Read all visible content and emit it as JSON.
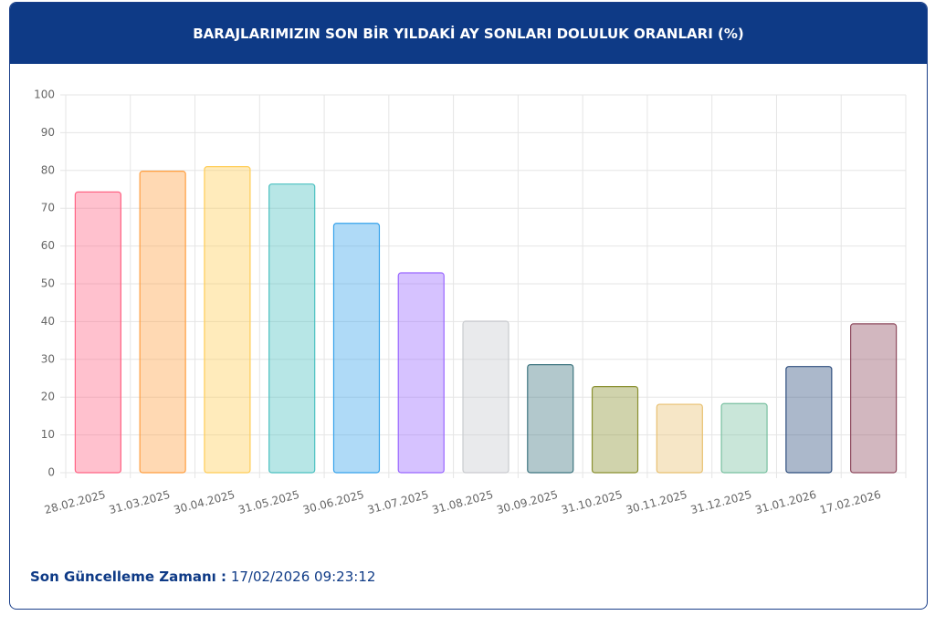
{
  "chart_data": {
    "type": "bar",
    "title": "BARAJLARIMIZIN SON BİR YILDAKİ AY SONLARI DOLULUK ORANLARI (%)",
    "categories": [
      "28.02.2025",
      "31.03.2025",
      "30.04.2025",
      "31.05.2025",
      "30.06.2025",
      "31.07.2025",
      "31.08.2025",
      "30.09.2025",
      "31.10.2025",
      "30.11.2025",
      "31.12.2025",
      "31.01.2026",
      "17.02.2026"
    ],
    "values": [
      74.3,
      79.8,
      81.0,
      76.4,
      66.0,
      52.9,
      40.1,
      28.6,
      22.8,
      18.1,
      18.3,
      28.1,
      39.4
    ],
    "colors": [
      "#ff6384",
      "#ff9f40",
      "#ffcd56",
      "#4bc0c0",
      "#36a2eb",
      "#9966ff",
      "#c9cbcf",
      "#3e7580",
      "#8a9030",
      "#e8c070",
      "#78c0a0",
      "#2e4e7e",
      "#8e4a5e"
    ],
    "ylim": [
      0,
      100
    ],
    "yticks": [
      0,
      10,
      20,
      30,
      40,
      50,
      60,
      70,
      80,
      90,
      100
    ],
    "grid": true
  },
  "footer": {
    "label": "Son Güncelleme Zamanı :",
    "value": "17/02/2026 09:23:12"
  }
}
